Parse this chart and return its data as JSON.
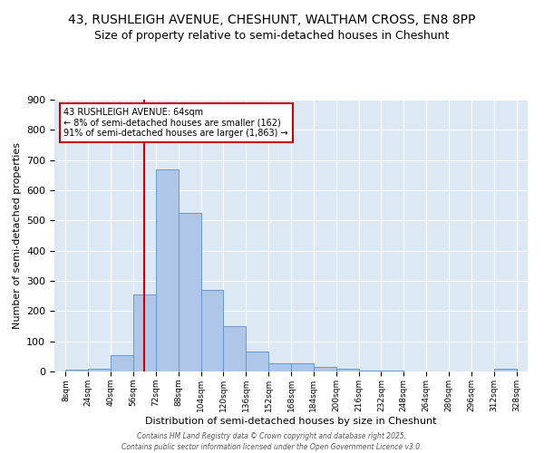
{
  "title1": "43, RUSHLEIGH AVENUE, CHESHUNT, WALTHAM CROSS, EN8 8PP",
  "title2": "Size of property relative to semi-detached houses in Cheshunt",
  "xlabel": "Distribution of semi-detached houses by size in Cheshunt",
  "ylabel": "Number of semi-detached properties",
  "footnote": "Contains HM Land Registry data © Crown copyright and database right 2025.\nContains public sector information licensed under the Open Government Licence v3.0.",
  "bins": [
    8,
    24,
    40,
    56,
    72,
    88,
    104,
    120,
    136,
    152,
    168,
    184,
    200,
    216,
    232,
    248,
    264,
    280,
    296,
    312,
    328
  ],
  "values": [
    5,
    10,
    55,
    255,
    670,
    525,
    270,
    150,
    65,
    27,
    27,
    15,
    10,
    3,
    3,
    0,
    0,
    0,
    0,
    8
  ],
  "bar_color": "#aec6e8",
  "bar_edge_color": "#6699cc",
  "vline_x": 64,
  "vline_color": "#cc0000",
  "annotation_text": "43 RUSHLEIGH AVENUE: 64sqm\n← 8% of semi-detached houses are smaller (162)\n91% of semi-detached houses are larger (1,863) →",
  "annotation_box_color": "#cc0000",
  "ylim": [
    0,
    900
  ],
  "bg_color": "#dce9f5",
  "grid_color": "#ffffff",
  "title1_fontsize": 10,
  "title2_fontsize": 9,
  "tick_labels": [
    "8sqm",
    "24sqm",
    "40sqm",
    "56sqm",
    "72sqm",
    "88sqm",
    "104sqm",
    "120sqm",
    "136sqm",
    "152sqm",
    "168sqm",
    "184sqm",
    "200sqm",
    "216sqm",
    "232sqm",
    "248sqm",
    "264sqm",
    "280sqm",
    "296sqm",
    "312sqm",
    "328sqm"
  ]
}
